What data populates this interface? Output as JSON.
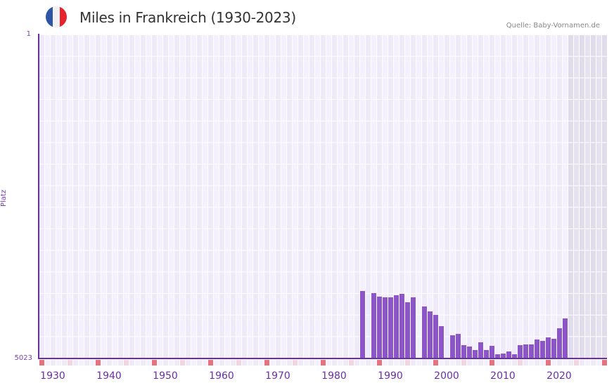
{
  "header": {
    "title": "Miles in Frankreich (1930-2023)",
    "source": "Quelle: Baby-Vornamen.de",
    "flag_colors": [
      "#2f56a6",
      "#f1f1f1",
      "#e6232e"
    ]
  },
  "axis": {
    "y_label": "Platz",
    "y_top": "1",
    "y_bottom": "5023",
    "x_ticks": [
      "1930",
      "1940",
      "1950",
      "1960",
      "1970",
      "1980",
      "1990",
      "2000",
      "2010",
      "2020"
    ]
  },
  "colors": {
    "bar": "#8e55c8",
    "axis": "#6a2fa8",
    "grid_a": "#efeafa",
    "grid_b": "#f4f1fc",
    "future_shade": "#e3dfee",
    "decade_marker": "#e5737d",
    "half_decade_marker": "#f3d6df"
  },
  "chart_data": {
    "type": "bar",
    "title": "Miles in Frankreich (1930-2023)",
    "xlabel": "",
    "ylabel": "Platz",
    "y_inverted": true,
    "ylim": [
      1,
      5023
    ],
    "x_range": [
      1928,
      2028
    ],
    "shaded_future_from": 2022,
    "categories": [
      1985,
      1987,
      1988,
      1989,
      1990,
      1991,
      1992,
      1993,
      1994,
      1996,
      1997,
      1998,
      1999,
      2001,
      2002,
      2003,
      2004,
      2005,
      2006,
      2007,
      2008,
      2009,
      2010,
      2011,
      2012,
      2013,
      2014,
      2015,
      2016,
      2017,
      2018,
      2019,
      2020,
      2021
    ],
    "values": [
      3975,
      4007,
      4062,
      4073,
      4073,
      4040,
      4018,
      4149,
      4073,
      4214,
      4291,
      4346,
      4521,
      4663,
      4641,
      4816,
      4838,
      4893,
      4772,
      4893,
      4827,
      4958,
      4947,
      4914,
      4958,
      4816,
      4805,
      4805,
      4728,
      4750,
      4696,
      4718,
      4554,
      4401
    ],
    "legend": []
  }
}
